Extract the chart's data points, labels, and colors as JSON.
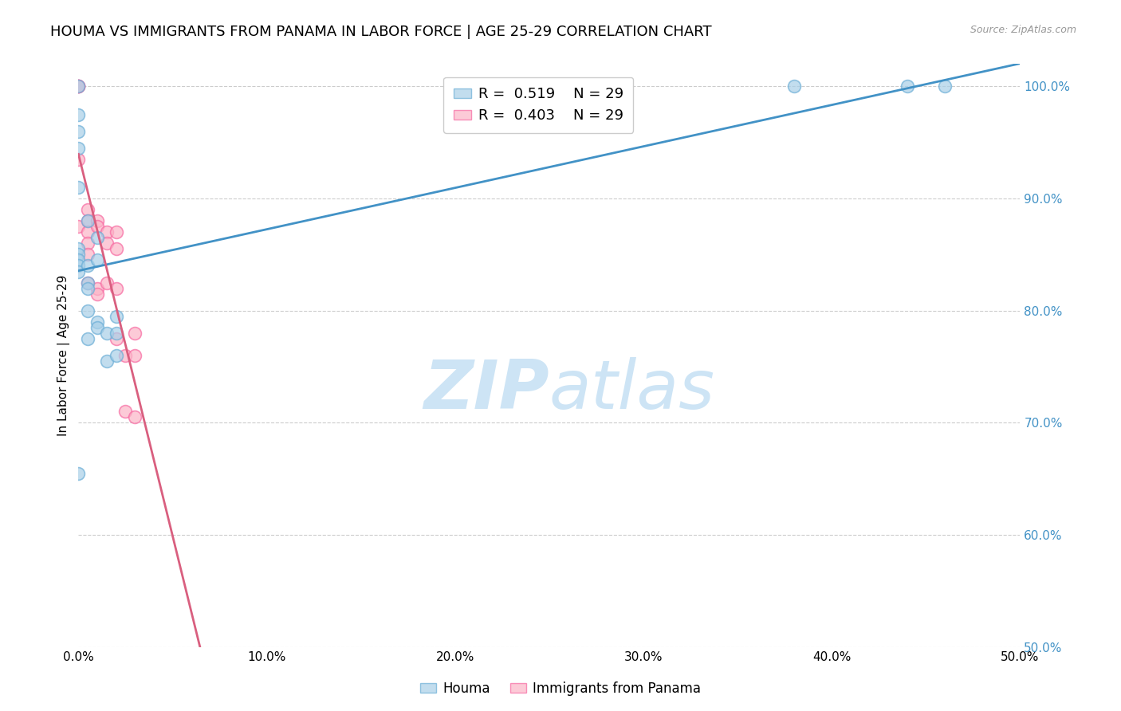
{
  "title": "HOUMA VS IMMIGRANTS FROM PANAMA IN LABOR FORCE | AGE 25-29 CORRELATION CHART",
  "source": "Source: ZipAtlas.com",
  "ylabel": "In Labor Force | Age 25-29",
  "xlim": [
    0.0,
    0.5
  ],
  "ylim": [
    0.5,
    1.02
  ],
  "xticks": [
    0.0,
    0.1,
    0.2,
    0.3,
    0.4,
    0.5
  ],
  "xticklabels": [
    "0.0%",
    "10.0%",
    "20.0%",
    "30.0%",
    "40.0%",
    "50.0%"
  ],
  "yticks": [
    0.5,
    0.6,
    0.7,
    0.8,
    0.9,
    1.0
  ],
  "yticklabels": [
    "50.0%",
    "60.0%",
    "70.0%",
    "80.0%",
    "90.0%",
    "100.0%"
  ],
  "houma_x": [
    0.0,
    0.0,
    0.0,
    0.0,
    0.0,
    0.0,
    0.0,
    0.0,
    0.0,
    0.0,
    0.0,
    0.005,
    0.005,
    0.005,
    0.005,
    0.005,
    0.005,
    0.01,
    0.01,
    0.01,
    0.01,
    0.015,
    0.015,
    0.02,
    0.02,
    0.02,
    0.38,
    0.44,
    0.46
  ],
  "houma_y": [
    1.0,
    0.975,
    0.96,
    0.945,
    0.91,
    0.855,
    0.85,
    0.845,
    0.84,
    0.835,
    0.655,
    0.88,
    0.84,
    0.825,
    0.82,
    0.8,
    0.775,
    0.865,
    0.845,
    0.79,
    0.785,
    0.78,
    0.755,
    0.795,
    0.78,
    0.76,
    1.0,
    1.0,
    1.0
  ],
  "panama_x": [
    0.0,
    0.0,
    0.0,
    0.0,
    0.0,
    0.0,
    0.0,
    0.005,
    0.005,
    0.005,
    0.005,
    0.005,
    0.005,
    0.01,
    0.01,
    0.01,
    0.01,
    0.015,
    0.015,
    0.015,
    0.02,
    0.02,
    0.02,
    0.02,
    0.025,
    0.025,
    0.03,
    0.03,
    0.03
  ],
  "panama_y": [
    1.0,
    1.0,
    1.0,
    1.0,
    1.0,
    0.935,
    0.875,
    0.89,
    0.88,
    0.87,
    0.86,
    0.85,
    0.825,
    0.88,
    0.875,
    0.82,
    0.815,
    0.87,
    0.86,
    0.825,
    0.87,
    0.855,
    0.82,
    0.775,
    0.76,
    0.71,
    0.78,
    0.76,
    0.705
  ],
  "houma_R": 0.519,
  "houma_N": 29,
  "panama_R": 0.403,
  "panama_N": 29,
  "houma_color": "#a8cfe8",
  "houma_edge_color": "#6baed6",
  "panama_color": "#fbb4c7",
  "panama_edge_color": "#f768a1",
  "houma_line_color": "#4292c6",
  "panama_line_color": "#d95f7f",
  "watermark_zip": "ZIP",
  "watermark_atlas": "atlas",
  "watermark_color": "#cde4f5",
  "legend_labels": [
    "Houma",
    "Immigrants from Panama"
  ],
  "title_fontsize": 13,
  "label_fontsize": 11,
  "tick_fontsize": 11,
  "right_tick_color": "#4292c6"
}
